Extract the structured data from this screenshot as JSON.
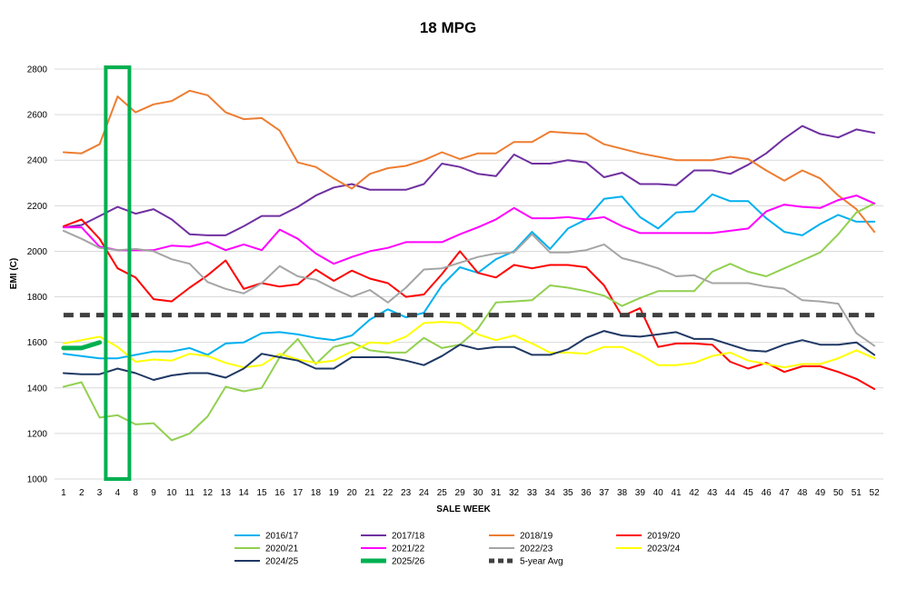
{
  "chart_data": {
    "type": "line",
    "title": "18 MPG",
    "xlabel": "SALE WEEK",
    "ylabel": "EMI (C)",
    "ylim": [
      1000,
      2800
    ],
    "yticks": [
      1000,
      1200,
      1400,
      1600,
      1800,
      2000,
      2200,
      2400,
      2600,
      2800
    ],
    "categories": [
      "1",
      "2",
      "3",
      "4",
      "8",
      "9",
      "10",
      "11",
      "12",
      "13",
      "14",
      "15",
      "16",
      "17",
      "18",
      "19",
      "20",
      "21",
      "22",
      "23",
      "24",
      "25",
      "29",
      "30",
      "31",
      "32",
      "33",
      "34",
      "35",
      "36",
      "37",
      "38",
      "39",
      "40",
      "41",
      "42",
      "43",
      "44",
      "45",
      "46",
      "47",
      "48",
      "49",
      "50",
      "51",
      "52"
    ],
    "grid": true,
    "legend_position": "bottom",
    "highlight": {
      "category": "4",
      "color": "#00B050"
    },
    "series": [
      {
        "name": "2016/17",
        "color": "#00B0F0",
        "width": 2,
        "dash": false,
        "values": [
          1550,
          1540,
          1530,
          1530,
          1545,
          1560,
          1560,
          1575,
          1545,
          1595,
          1600,
          1640,
          1645,
          1635,
          1620,
          1610,
          1630,
          1700,
          1745,
          1710,
          1730,
          1850,
          1930,
          1905,
          1965,
          2000,
          2085,
          2010,
          2100,
          2140,
          2230,
          2240,
          2150,
          2100,
          2170,
          2175,
          2250,
          2220,
          2220,
          2145,
          2085,
          2070,
          2120,
          2160,
          2130,
          2130
        ]
      },
      {
        "name": "2017/18",
        "color": "#7030A0",
        "width": 2,
        "dash": false,
        "values": [
          2105,
          2115,
          2155,
          2195,
          2165,
          2185,
          2140,
          2075,
          2070,
          2070,
          2110,
          2155,
          2155,
          2195,
          2245,
          2280,
          2295,
          2270,
          2270,
          2270,
          2295,
          2385,
          2370,
          2340,
          2330,
          2425,
          2385,
          2385,
          2400,
          2390,
          2325,
          2345,
          2295,
          2295,
          2290,
          2355,
          2355,
          2340,
          2380,
          2430,
          2495,
          2550,
          2515,
          2500,
          2535,
          2520
        ]
      },
      {
        "name": "2018/19",
        "color": "#ED7D31",
        "width": 2,
        "dash": false,
        "values": [
          2435,
          2430,
          2470,
          2680,
          2610,
          2645,
          2660,
          2705,
          2685,
          2610,
          2580,
          2585,
          2530,
          2390,
          2370,
          2320,
          2275,
          2340,
          2365,
          2375,
          2400,
          2435,
          2405,
          2430,
          2430,
          2480,
          2480,
          2525,
          2520,
          2515,
          2470,
          2450,
          2430,
          2415,
          2400,
          2400,
          2400,
          2415,
          2405,
          2355,
          2310,
          2355,
          2320,
          2245,
          2185,
          2085
        ]
      },
      {
        "name": "2019/20",
        "color": "#FF0000",
        "width": 2,
        "dash": false,
        "values": [
          2110,
          2140,
          2055,
          1925,
          1885,
          1790,
          1780,
          1840,
          1895,
          1960,
          1835,
          1860,
          1845,
          1855,
          1920,
          1870,
          1915,
          1880,
          1860,
          1800,
          1810,
          1900,
          2000,
          1905,
          1885,
          1940,
          1925,
          1940,
          1940,
          1930,
          1850,
          1715,
          1750,
          1580,
          1595,
          1595,
          1590,
          1515,
          1485,
          1510,
          1470,
          1495,
          1495,
          1470,
          1440,
          1395
        ]
      },
      {
        "name": "2020/21",
        "color": "#92D050",
        "width": 2,
        "dash": false,
        "values": [
          1405,
          1425,
          1270,
          1280,
          1240,
          1245,
          1170,
          1200,
          1275,
          1405,
          1385,
          1400,
          1535,
          1615,
          1505,
          1580,
          1600,
          1565,
          1555,
          1555,
          1620,
          1575,
          1590,
          1660,
          1775,
          1780,
          1785,
          1850,
          1840,
          1825,
          1805,
          1760,
          1795,
          1825,
          1825,
          1825,
          1910,
          1945,
          1910,
          1890,
          1925,
          1960,
          1995,
          2075,
          2170,
          2210
        ]
      },
      {
        "name": "2021/22",
        "color": "#FF00FF",
        "width": 2,
        "dash": false,
        "values": [
          2105,
          2105,
          2020,
          2005,
          2005,
          2005,
          2025,
          2020,
          2040,
          2005,
          2030,
          2005,
          2095,
          2055,
          1990,
          1945,
          1975,
          2000,
          2015,
          2040,
          2040,
          2040,
          2075,
          2105,
          2140,
          2190,
          2145,
          2145,
          2150,
          2140,
          2150,
          2110,
          2080,
          2080,
          2080,
          2080,
          2080,
          2090,
          2100,
          2175,
          2205,
          2195,
          2190,
          2225,
          2245,
          2210
        ]
      },
      {
        "name": "2022/23",
        "color": "#A5A5A5",
        "width": 2,
        "dash": false,
        "values": [
          2090,
          2055,
          2015,
          2005,
          2010,
          2000,
          1965,
          1945,
          1865,
          1835,
          1815,
          1860,
          1935,
          1890,
          1875,
          1835,
          1800,
          1830,
          1775,
          1840,
          1920,
          1925,
          1950,
          1975,
          1990,
          1995,
          2075,
          1995,
          1995,
          2005,
          2030,
          1970,
          1950,
          1925,
          1890,
          1895,
          1860,
          1860,
          1860,
          1845,
          1835,
          1785,
          1780,
          1770,
          1640,
          1585
        ]
      },
      {
        "name": "2023/24",
        "color": "#FFFF00",
        "width": 2,
        "dash": false,
        "values": [
          1595,
          1610,
          1625,
          1580,
          1515,
          1525,
          1520,
          1550,
          1540,
          1510,
          1490,
          1500,
          1550,
          1525,
          1510,
          1520,
          1560,
          1600,
          1595,
          1625,
          1685,
          1690,
          1685,
          1635,
          1610,
          1630,
          1595,
          1555,
          1555,
          1550,
          1580,
          1580,
          1545,
          1500,
          1500,
          1510,
          1540,
          1555,
          1520,
          1505,
          1490,
          1505,
          1505,
          1530,
          1565,
          1530
        ]
      },
      {
        "name": "2024/25",
        "color": "#1F3864",
        "width": 2,
        "dash": false,
        "values": [
          1465,
          1460,
          1460,
          1485,
          1465,
          1435,
          1455,
          1465,
          1465,
          1445,
          1485,
          1550,
          1535,
          1520,
          1485,
          1485,
          1535,
          1535,
          1535,
          1520,
          1500,
          1540,
          1590,
          1570,
          1580,
          1580,
          1545,
          1545,
          1570,
          1620,
          1650,
          1630,
          1625,
          1635,
          1645,
          1615,
          1615,
          1590,
          1565,
          1560,
          1590,
          1610,
          1590,
          1590,
          1600,
          1545
        ]
      },
      {
        "name": "2025/26",
        "color": "#00B050",
        "width": 5,
        "dash": false,
        "values": [
          1575,
          1575,
          1600,
          null,
          null,
          null,
          null,
          null,
          null,
          null,
          null,
          null,
          null,
          null,
          null,
          null,
          null,
          null,
          null,
          null,
          null,
          null,
          null,
          null,
          null,
          null,
          null,
          null,
          null,
          null,
          null,
          null,
          null,
          null,
          null,
          null,
          null,
          null,
          null,
          null,
          null,
          null,
          null,
          null,
          null,
          null
        ]
      },
      {
        "name": "5-year Avg",
        "color": "#404040",
        "width": 5,
        "dash": true,
        "values": [
          1720,
          1720,
          1720,
          1720,
          1720,
          1720,
          1720,
          1720,
          1720,
          1720,
          1720,
          1720,
          1720,
          1720,
          1720,
          1720,
          1720,
          1720,
          1720,
          1720,
          1720,
          1720,
          1720,
          1720,
          1720,
          1720,
          1720,
          1720,
          1720,
          1720,
          1720,
          1720,
          1720,
          1720,
          1720,
          1720,
          1720,
          1720,
          1720,
          1720,
          1720,
          1720,
          1720,
          1720,
          1720,
          1720
        ]
      }
    ]
  }
}
